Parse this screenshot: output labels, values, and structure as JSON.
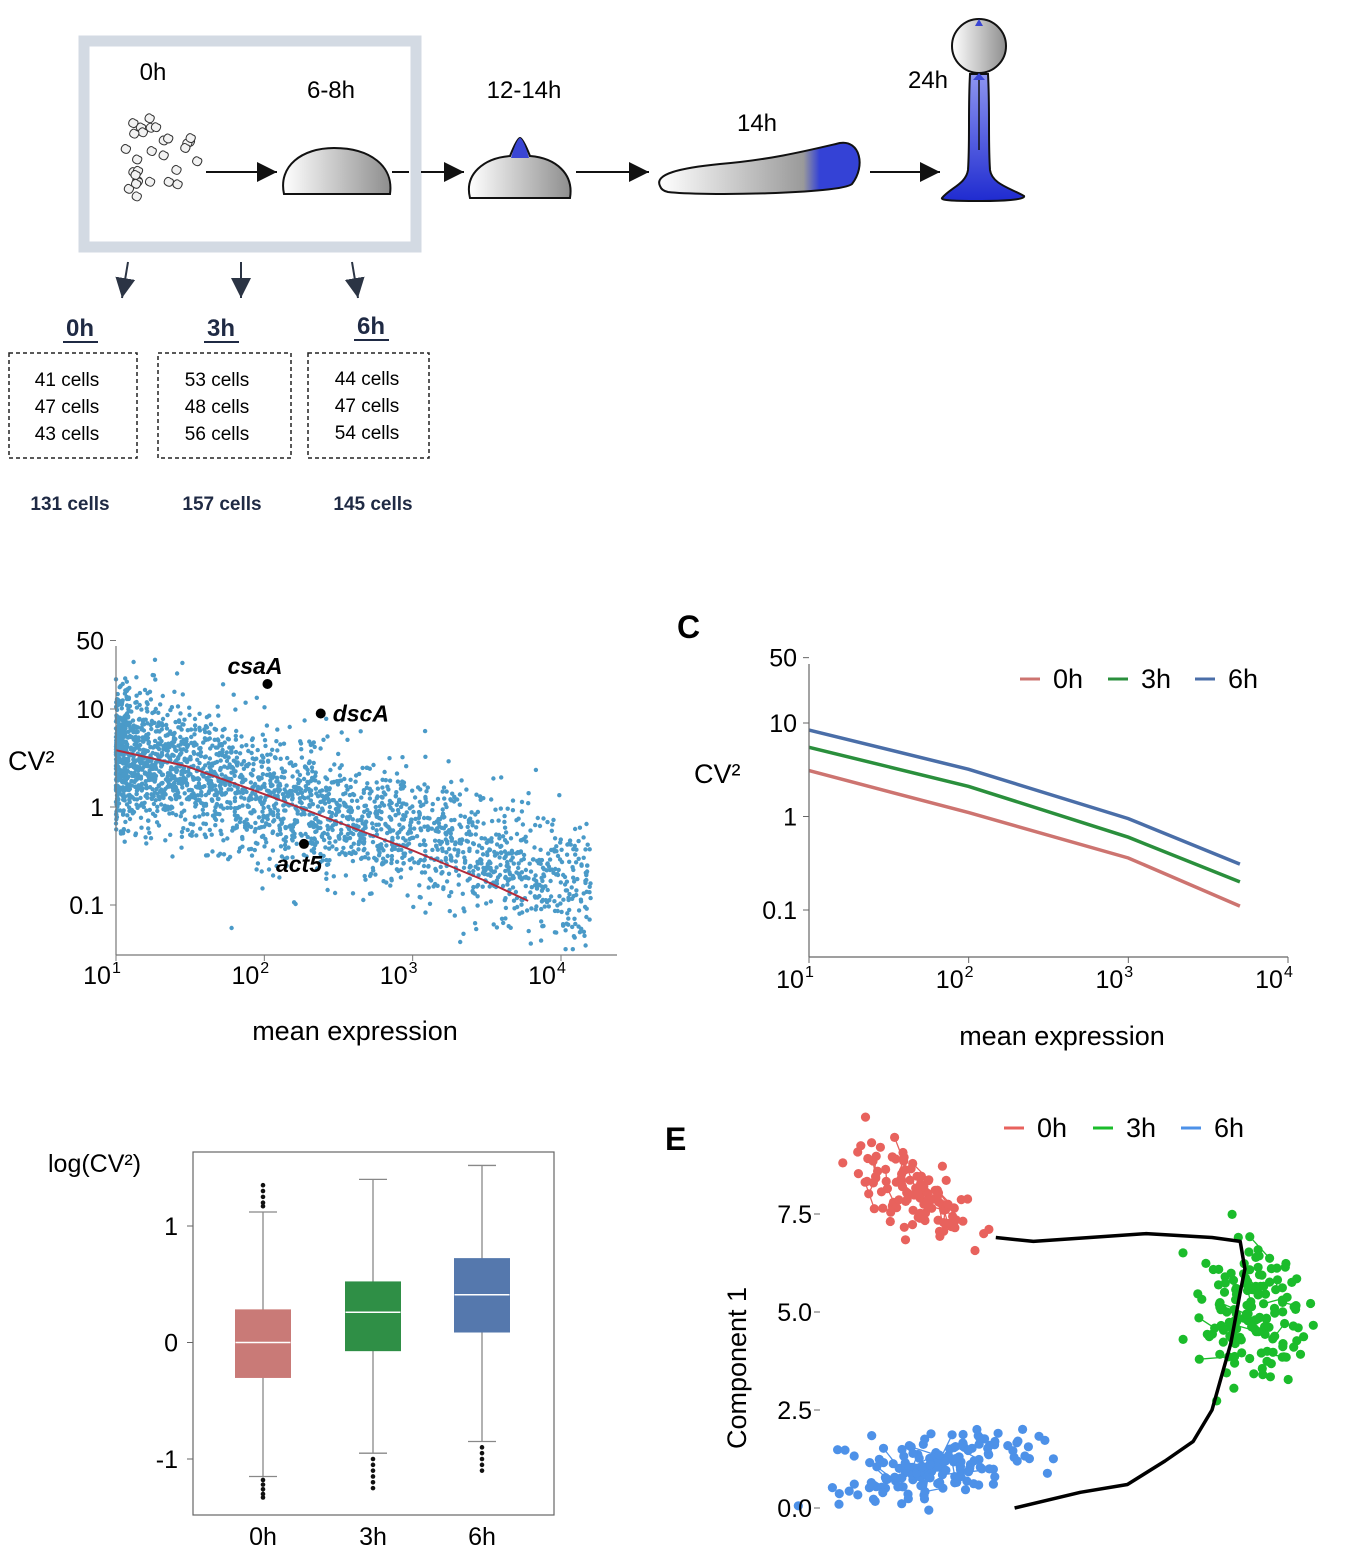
{
  "panel_a": {
    "stages": [
      {
        "label": "0h"
      },
      {
        "label": "6-8h"
      },
      {
        "label": "12-14h"
      },
      {
        "label": "14h"
      },
      {
        "label": "24h"
      }
    ],
    "samples": [
      {
        "time": "0h",
        "replicates": [
          "41 cells",
          "47 cells",
          "43 cells"
        ],
        "total": "131 cells"
      },
      {
        "time": "3h",
        "replicates": [
          "53 cells",
          "48 cells",
          "56 cells"
        ],
        "total": "157 cells"
      },
      {
        "time": "6h",
        "replicates": [
          "44 cells",
          "47 cells",
          "54 cells"
        ],
        "total": "145 cells"
      }
    ],
    "colors": {
      "box_border": "#d3dae3",
      "stage_blue": "#3442d6"
    }
  },
  "chart_data": [
    {
      "panel": "",
      "type": "scatter",
      "xlabel": "mean expression",
      "ylabel": "CV²",
      "xscale": "log",
      "yscale": "log",
      "xlim": [
        10,
        25000
      ],
      "ylim": [
        0.04,
        60
      ],
      "x_ticks": [
        {
          "value": 10,
          "base": "10",
          "exp": "1"
        },
        {
          "value": 100,
          "base": "10",
          "exp": "2"
        },
        {
          "value": 1000,
          "base": "10",
          "exp": "3"
        },
        {
          "value": 10000,
          "base": "10",
          "exp": "4"
        }
      ],
      "y_ticks": [
        {
          "value": 50,
          "label": "50"
        },
        {
          "value": 10,
          "label": "10"
        },
        {
          "value": 1,
          "label": "1"
        },
        {
          "value": 0.1,
          "label": "0.1"
        }
      ],
      "points_color": "#4a9ac8",
      "fit_color": "#b32a3a",
      "fit_line": {
        "x": [
          10,
          30,
          100,
          300,
          1000,
          3000,
          6000
        ],
        "y": [
          3.8,
          2.6,
          1.35,
          0.72,
          0.36,
          0.18,
          0.11
        ]
      },
      "highlighted_genes": [
        {
          "name": "csaA",
          "x": 105,
          "y": 18
        },
        {
          "name": "dscA",
          "x": 240,
          "y": 9.0
        },
        {
          "name": "act5",
          "x": 185,
          "y": 0.42
        }
      ]
    },
    {
      "panel": "C",
      "type": "line",
      "xlabel": "mean expression",
      "ylabel": "CV²",
      "xscale": "log",
      "yscale": "log",
      "xlim": [
        10,
        10000
      ],
      "ylim": [
        0.04,
        60
      ],
      "x_ticks": [
        {
          "value": 10,
          "base": "10",
          "exp": "1"
        },
        {
          "value": 100,
          "base": "10",
          "exp": "2"
        },
        {
          "value": 1000,
          "base": "10",
          "exp": "3"
        },
        {
          "value": 10000,
          "base": "10",
          "exp": "4"
        }
      ],
      "y_ticks": [
        {
          "value": 50,
          "label": "50"
        },
        {
          "value": 10,
          "label": "10"
        },
        {
          "value": 1,
          "label": "1"
        },
        {
          "value": 0.1,
          "label": "0.1"
        }
      ],
      "legend_position": "top-right",
      "series": [
        {
          "name": "0h",
          "color": "#cd7470",
          "x": [
            10,
            100,
            1000,
            5000
          ],
          "y": [
            3.1,
            1.1,
            0.36,
            0.11
          ]
        },
        {
          "name": "3h",
          "color": "#2a8f3c",
          "x": [
            10,
            100,
            1000,
            5000
          ],
          "y": [
            5.5,
            2.1,
            0.6,
            0.2
          ]
        },
        {
          "name": "6h",
          "color": "#4a6ea8",
          "x": [
            10,
            100,
            1000,
            5000
          ],
          "y": [
            8.4,
            3.2,
            0.95,
            0.31
          ]
        }
      ]
    },
    {
      "panel": "",
      "type": "box",
      "ylabel": "log(CV²)",
      "ylim": [
        -1.5,
        1.5
      ],
      "y_ticks": [
        {
          "value": 1,
          "label": "1"
        },
        {
          "value": 0,
          "label": "0"
        },
        {
          "value": -1,
          "label": "-1"
        }
      ],
      "categories": [
        "0h",
        "3h",
        "6h"
      ],
      "boxes": [
        {
          "name": "0h",
          "color": "#c97a77",
          "whisker_low": -1.15,
          "q1": -0.3,
          "median": 0.0,
          "q3": 0.28,
          "whisker_high": 1.12,
          "outliers": [
            1.35,
            1.3,
            1.25,
            1.2,
            1.17,
            -1.18,
            -1.22,
            -1.26,
            -1.3,
            -1.33
          ]
        },
        {
          "name": "3h",
          "color": "#2f8f46",
          "whisker_low": -0.95,
          "q1": -0.07,
          "median": 0.26,
          "q3": 0.52,
          "whisker_high": 1.4,
          "outliers": [
            -1.0,
            -1.05,
            -1.1,
            -1.15,
            -1.2,
            -1.25
          ]
        },
        {
          "name": "6h",
          "color": "#5578ad",
          "whisker_low": -0.85,
          "q1": 0.09,
          "median": 0.41,
          "q3": 0.72,
          "whisker_high": 1.52,
          "outliers": [
            -0.9,
            -0.95,
            -1.0,
            -1.05,
            -1.1
          ]
        }
      ]
    },
    {
      "panel": "E",
      "type": "scatter",
      "ylabel": "Component 1",
      "ylim": [
        -0.3,
        9.0
      ],
      "y_ticks": [
        {
          "value": 7.5,
          "label": "7.5"
        },
        {
          "value": 5.0,
          "label": "5.0"
        },
        {
          "value": 2.5,
          "label": "2.5"
        },
        {
          "value": 0.0,
          "label": "0.0"
        }
      ],
      "legend_position": "top-right",
      "series": [
        {
          "name": "0h",
          "color": "#e8625d"
        },
        {
          "name": "3h",
          "color": "#1bbc2b"
        },
        {
          "name": "6h",
          "color": "#4d91e8"
        }
      ],
      "trajectory_color": "#000000",
      "trajectory": {
        "x": [
          1.9,
          2.6,
          3.1,
          3.5,
          3.8,
          4.0,
          4.2,
          4.3,
          4.35,
          4.3,
          4.0,
          3.3,
          2.7,
          2.1,
          1.7
        ],
        "y": [
          0.0,
          0.4,
          0.6,
          1.2,
          1.7,
          2.5,
          4.2,
          5.5,
          6.1,
          6.8,
          6.9,
          7.0,
          6.9,
          6.8,
          6.9
        ]
      }
    }
  ]
}
